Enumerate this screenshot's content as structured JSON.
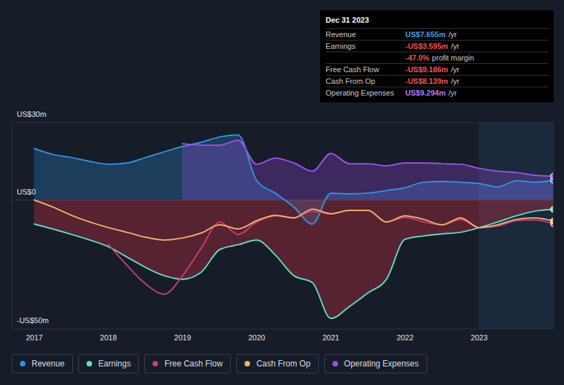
{
  "chart_data": {
    "type": "line",
    "x": [
      2017,
      2017.25,
      2017.5,
      2017.75,
      2018,
      2018.25,
      2018.5,
      2018.75,
      2019,
      2019.25,
      2019.5,
      2019.75,
      2020,
      2020.25,
      2020.5,
      2020.75,
      2021,
      2021.25,
      2021.5,
      2021.75,
      2022,
      2022.25,
      2022.5,
      2022.75,
      2023,
      2023.25,
      2023.5,
      2023.75,
      2024
    ],
    "xlim": [
      2016.7,
      2024
    ],
    "xticks": [
      2017,
      2018,
      2019,
      2020,
      2021,
      2022,
      2023
    ],
    "ylim": [
      -50,
      30
    ],
    "yticks": [
      {
        "value": 30,
        "label": "US$30m"
      },
      {
        "value": 0,
        "label": "US$0"
      },
      {
        "value": -50,
        "label": "-US$50m"
      }
    ],
    "grid": true,
    "legend": "bottom",
    "highlight_x": [
      2023,
      2024
    ],
    "series": [
      {
        "name": "Revenue",
        "color": "#2f93e0",
        "type": "area",
        "values": [
          20,
          17.7,
          16.5,
          15.0,
          13.9,
          14.4,
          16.5,
          18.7,
          20.8,
          22.4,
          24.5,
          25.3,
          7.5,
          2.7,
          -2.7,
          -9.3,
          2.7,
          2.4,
          2.7,
          3.7,
          4.8,
          6.9,
          7.2,
          6.9,
          6.4,
          5.1,
          7.5,
          6.9,
          7.655
        ]
      },
      {
        "name": "Earnings",
        "color": "#5fe0c4",
        "type": "area",
        "values": [
          -9.3,
          -11.2,
          -13.3,
          -15.5,
          -18.1,
          -22.1,
          -26.1,
          -29.3,
          -30.7,
          -28,
          -19.2,
          -17.3,
          -15.5,
          -21.3,
          -29.3,
          -32,
          -45.9,
          -41.3,
          -36,
          -30.7,
          -15.2,
          -13.9,
          -13.1,
          -12.5,
          -10.7,
          -8.5,
          -6.1,
          -4.3,
          -3.595
        ]
      },
      {
        "name": "Free Cash Flow",
        "color": "#c93d78",
        "type": "line",
        "values": [
          null,
          null,
          null,
          null,
          -17.3,
          -25.3,
          -32.5,
          -36.5,
          -29.3,
          -18.7,
          -8.5,
          -13.3,
          -8.5,
          -6.1,
          -6.9,
          -4.3,
          -5.3,
          -4,
          -4,
          -8.5,
          -6.7,
          -8.5,
          -9.6,
          -7.5,
          -10.7,
          -10.1,
          -8,
          -7.7,
          -9.186
        ]
      },
      {
        "name": "Cash From Op",
        "color": "#f0b26a",
        "type": "line",
        "values": [
          0,
          -2.7,
          -5.9,
          -8.5,
          -10.7,
          -12.5,
          -14.4,
          -15.5,
          -14.7,
          -12.8,
          -9.6,
          -11.2,
          -8,
          -5.9,
          -6.9,
          -3.5,
          -5.3,
          -4,
          -4,
          -8.5,
          -6.1,
          -7.5,
          -9.6,
          -6.9,
          -10.7,
          -9.6,
          -7.5,
          -6.9,
          -8.139
        ]
      },
      {
        "name": "Operating Expenses",
        "color": "#a050e8",
        "type": "area",
        "values": [
          null,
          null,
          null,
          null,
          null,
          null,
          null,
          null,
          21.9,
          21.3,
          21.3,
          23.2,
          13.9,
          16.3,
          14.4,
          11.2,
          18.1,
          14.1,
          14.1,
          13.3,
          14.4,
          14.4,
          14.1,
          13.9,
          12.3,
          11.2,
          10.7,
          9.6,
          9.294
        ]
      }
    ],
    "tooltip": {
      "title": "Dec 31 2023",
      "rows": [
        {
          "label": "Revenue",
          "value": "US$7.655m",
          "unit": "/yr",
          "color": "#3d9ff0"
        },
        {
          "label": "Earnings",
          "value": "-US$3.595m",
          "unit": "/yr",
          "color": "#ff4d4d"
        },
        {
          "value": "-47.0%",
          "unit": "profit margin",
          "color": "#ff4d4d"
        },
        {
          "label": "Free Cash Flow",
          "value": "-US$9.186m",
          "unit": "/yr",
          "color": "#ff4d4d"
        },
        {
          "label": "Cash From Op",
          "value": "-US$8.139m",
          "unit": "/yr",
          "color": "#ff4d4d"
        },
        {
          "label": "Operating Expenses",
          "value": "US$9.294m",
          "unit": "/yr",
          "color": "#b07cff"
        }
      ]
    }
  }
}
